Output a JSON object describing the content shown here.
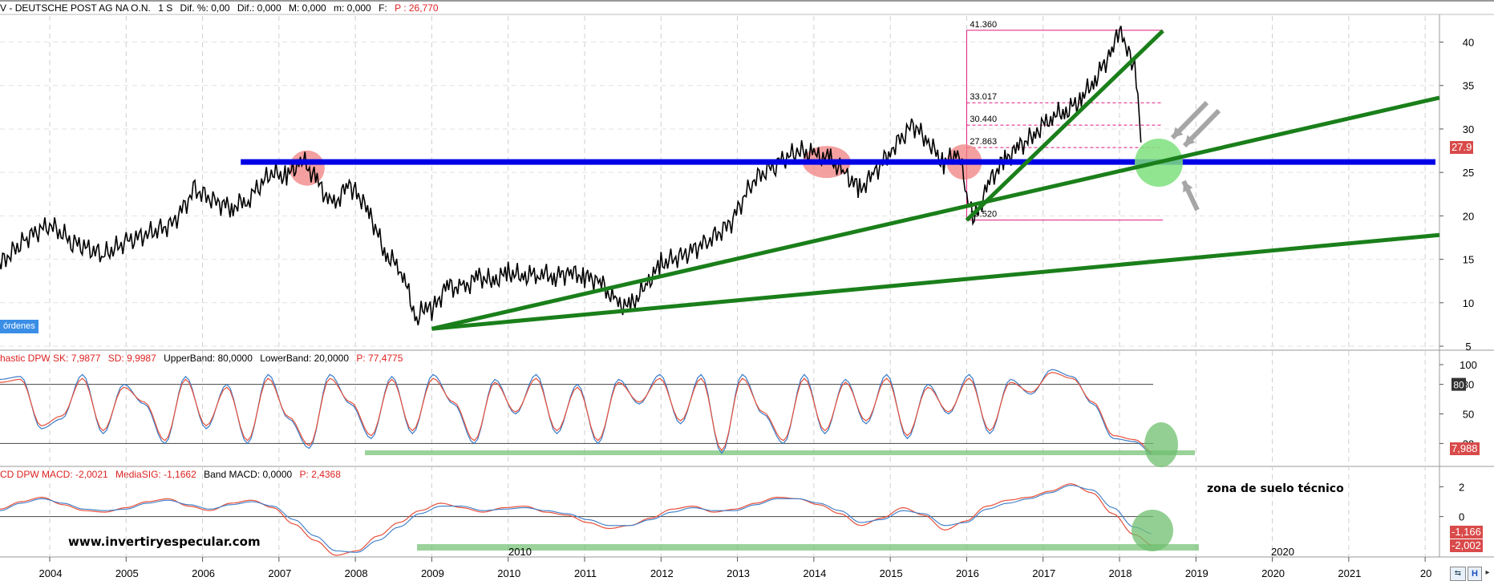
{
  "header": {
    "main": {
      "prefix": "V",
      "name": "DEUTSCHE POST AG NA O.N.",
      "period": "1 S",
      "dif_pct": "Dif. %: 0,00",
      "dif": "Dif.: 0,000",
      "max": "M: 0,000",
      "min": "m: 0,000",
      "f": "F:",
      "p": "P : 26,770"
    },
    "stoch": {
      "name": "hastic DPW SK: 7,9877",
      "sd": "SD: 9,9987",
      "upper": "UpperBand: 80,0000",
      "lower": "LowerBand: 20,0000",
      "p": "P: 77,4775"
    },
    "macd": {
      "name": "CD DPW MACD: -2,0021",
      "sig": "MediaSIG: -1,1662",
      "band": "Band MACD: 0,0000",
      "p": "P: 2,4368"
    }
  },
  "orders_button": "órdenes",
  "watermark": "www.invertiryespecular.com",
  "annotation": "zona de suelo técnico",
  "chart_data": [
    {
      "type": "line",
      "series": [
        {
          "name": "DEUTSCHE POST AG NA O.N.",
          "x": [
            2003.0,
            2003.3,
            2003.7,
            2004.0,
            2004.3,
            2004.7,
            2005.0,
            2005.3,
            2005.6,
            2005.9,
            2006.2,
            2006.4,
            2006.6,
            2006.9,
            2007.1,
            2007.3,
            2007.5,
            2007.7,
            2007.9,
            2008.0,
            2008.2,
            2008.4,
            2008.6,
            2008.8,
            2008.9,
            2009.0,
            2009.2,
            2009.4,
            2009.6,
            2009.8,
            2010.0,
            2010.2,
            2010.4,
            2010.6,
            2010.8,
            2011.0,
            2011.2,
            2011.4,
            2011.6,
            2011.8,
            2012.0,
            2012.3,
            2012.6,
            2012.9,
            2013.2,
            2013.5,
            2013.8,
            2014.0,
            2014.2,
            2014.4,
            2014.6,
            2014.8,
            2015.0,
            2015.3,
            2015.5,
            2015.7,
            2015.9,
            2016.0,
            2016.1,
            2016.3,
            2016.5,
            2016.7,
            2016.9,
            2017.1,
            2017.3,
            2017.5,
            2017.7,
            2017.9,
            2018.0,
            2018.1,
            2018.2,
            2018.3
          ],
          "y": [
            12.5,
            14,
            17.5,
            19,
            17,
            15.5,
            17,
            18,
            19,
            23,
            21.5,
            21,
            22,
            25,
            24.5,
            26.5,
            24,
            21,
            23.5,
            23,
            20,
            15.5,
            14,
            8,
            9.5,
            9,
            12,
            11.5,
            13,
            12.5,
            13.5,
            13,
            13.5,
            13,
            13.5,
            13,
            12.5,
            10,
            9.5,
            12,
            14.5,
            15.5,
            17,
            19,
            24,
            26,
            27.5,
            27,
            26.5,
            25,
            23,
            25,
            27.5,
            30.5,
            28.5,
            26,
            27.5,
            22,
            19.5,
            24,
            26.5,
            28,
            29.5,
            31.5,
            32,
            33.5,
            36,
            39,
            41.3,
            39,
            37,
            27.9
          ]
        }
      ],
      "fib_levels": [
        41.36,
        33.017,
        30.44,
        27.863,
        19.52
      ],
      "fib_labels": [
        "41.360",
        "33.017",
        "30.440",
        "27.863",
        "19.520"
      ],
      "horizontal_support": 26.2,
      "ylim": [
        5,
        43
      ],
      "y_ticks": [
        5,
        10,
        15,
        20,
        25,
        30,
        35,
        40
      ],
      "last_value_label": "27.9",
      "x_ticks": [
        "2004",
        "2005",
        "2006",
        "2007",
        "2008",
        "2009",
        "2010",
        "2011",
        "2012",
        "2013",
        "2014",
        "2015",
        "2016",
        "2017",
        "2018",
        "2019",
        "2020",
        "2021",
        "20"
      ]
    },
    {
      "type": "line",
      "series": [
        {
          "name": "SK",
          "y": [
            85,
            88,
            35,
            45,
            90,
            30,
            80,
            60,
            20,
            88,
            35,
            80,
            20,
            90,
            45,
            15,
            90,
            60,
            25,
            88,
            30,
            90,
            60,
            20,
            85,
            50,
            90,
            30,
            80,
            20,
            85,
            60,
            90,
            40,
            90,
            10,
            90,
            50,
            20,
            90,
            30,
            85,
            40,
            90,
            25,
            80,
            50,
            90,
            30,
            85,
            70,
            95,
            88,
            60,
            25,
            22,
            8
          ]
        },
        {
          "name": "SD",
          "y": [
            82,
            85,
            38,
            48,
            86,
            33,
            77,
            62,
            23,
            85,
            38,
            77,
            23,
            86,
            47,
            18,
            86,
            62,
            28,
            85,
            33,
            86,
            62,
            23,
            82,
            52,
            86,
            33,
            77,
            23,
            82,
            62,
            86,
            43,
            86,
            13,
            86,
            52,
            23,
            86,
            33,
            82,
            43,
            86,
            28,
            77,
            52,
            86,
            33,
            82,
            72,
            92,
            86,
            62,
            28,
            24,
            10
          ]
        }
      ],
      "upper_band": 80,
      "lower_band": 20,
      "ylim": [
        0,
        100
      ],
      "y_ticks": [
        0,
        20,
        50,
        80,
        100
      ],
      "last_value_label": "7,988"
    },
    {
      "type": "line",
      "series": [
        {
          "name": "MACD",
          "y": [
            0.5,
            1,
            1.3,
            0.8,
            0.4,
            0.3,
            0.6,
            1,
            1.2,
            0.7,
            0.4,
            0.9,
            1.1,
            0.6,
            -0.5,
            -1.6,
            -2.6,
            -2.3,
            -1.3,
            -0.4,
            0.4,
            0.9,
            0.6,
            0.3,
            0.6,
            0.7,
            0.3,
            0.1,
            -0.4,
            -0.8,
            -0.6,
            -0.1,
            0.5,
            0.7,
            0.3,
            0.5,
            0.9,
            1.3,
            1.2,
            0.8,
            0.2,
            -0.6,
            -0.1,
            0.6,
            0.1,
            -0.9,
            -0.3,
            0.7,
            1.1,
            1.3,
            1.7,
            2.2,
            1.6,
            0.2,
            -1.2,
            -2.0
          ]
        },
        {
          "name": "MediaSIG",
          "y": [
            0.4,
            0.9,
            1.2,
            0.9,
            0.5,
            0.4,
            0.5,
            0.9,
            1.1,
            0.8,
            0.5,
            0.8,
            1,
            0.7,
            -0.2,
            -1.3,
            -2.3,
            -2.4,
            -1.6,
            -0.7,
            0.2,
            0.7,
            0.7,
            0.4,
            0.5,
            0.6,
            0.4,
            0.2,
            -0.2,
            -0.6,
            -0.6,
            -0.2,
            0.3,
            0.6,
            0.4,
            0.4,
            0.8,
            1.2,
            1.2,
            0.9,
            0.4,
            -0.4,
            -0.2,
            0.4,
            0.2,
            -0.6,
            -0.4,
            0.5,
            0.9,
            1.2,
            1.6,
            2.1,
            1.8,
            0.6,
            -0.7,
            -1.2
          ]
        }
      ],
      "band": 0,
      "ylim": [
        -2.6,
        2.4
      ],
      "y_ticks": [
        2,
        0
      ],
      "y_tick_labels": [
        "2",
        "0"
      ],
      "last_value_labels": [
        "-1,166",
        "-2,002"
      ],
      "inner_year_labels": [
        "2010",
        "2020"
      ]
    }
  ],
  "colors": {
    "trend": "#1a7f1a",
    "support": "#0000e6",
    "fib": "#e0197f",
    "highlight_red": "#f08080",
    "highlight_green": "#7ee07e",
    "stoch_k": "#3a7cc8",
    "stoch_d": "#e8503a",
    "zone": "#6fbf6f"
  }
}
